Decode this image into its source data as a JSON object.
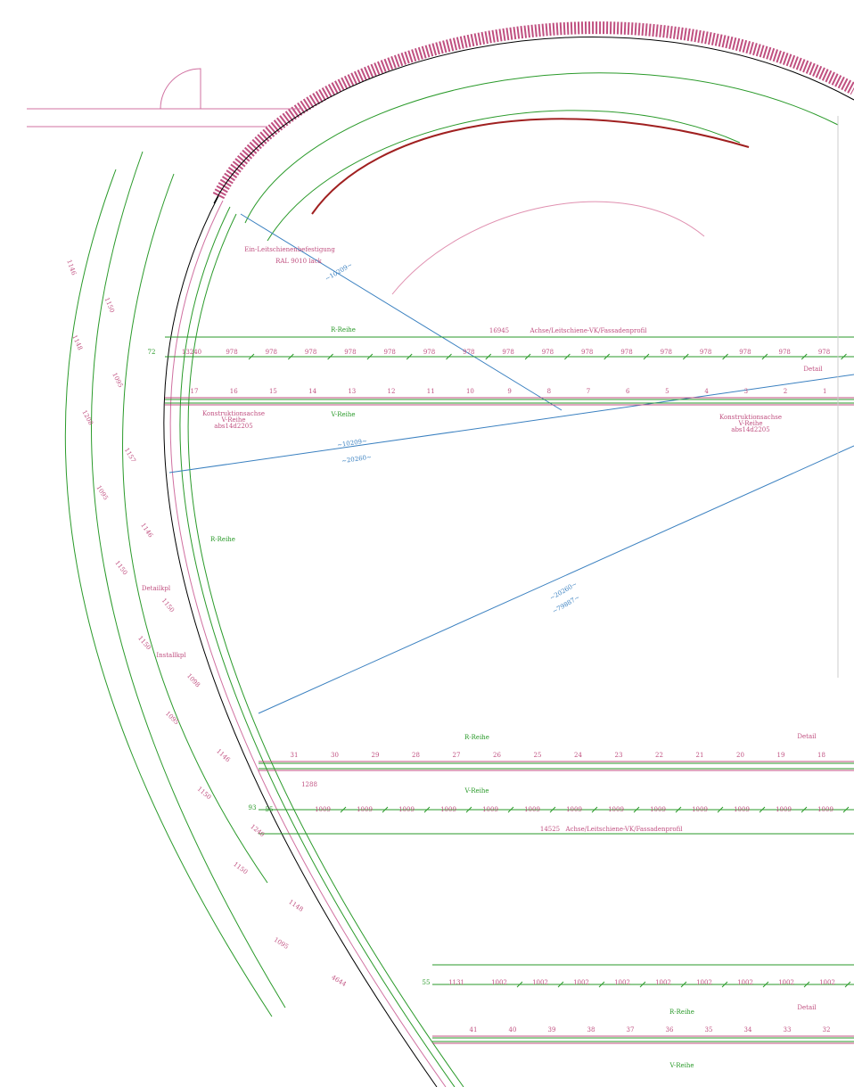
{
  "row_a": {
    "total": "16945",
    "axis": "Achse/Leitschiene-VK/Fassadenprofil",
    "left_dims": [
      "72",
      "13240"
    ],
    "dims": [
      "978",
      "978",
      "978",
      "978",
      "978",
      "978",
      "978",
      "978",
      "978",
      "978",
      "978",
      "978",
      "978",
      "978",
      "978",
      "978"
    ],
    "seats": [
      "17",
      "16",
      "15",
      "14",
      "13",
      "12",
      "11",
      "10",
      "9",
      "8",
      "7",
      "6",
      "5",
      "4",
      "3",
      "2",
      "1"
    ]
  },
  "row_b": {
    "total": "14525",
    "axis": "Achse/Leitschiene-VK/Fassadenprofil",
    "left_dims": [
      "93",
      "55",
      "1288"
    ],
    "dims": [
      "1009",
      "1009",
      "1009",
      "1009",
      "1009",
      "1009",
      "1009",
      "1009",
      "1009",
      "1009",
      "1009",
      "1009",
      "1009"
    ],
    "seats": [
      "31",
      "30",
      "29",
      "28",
      "27",
      "26",
      "25",
      "24",
      "23",
      "22",
      "21",
      "20",
      "19",
      "18"
    ]
  },
  "row_c": {
    "left_dims": [
      "55",
      "1131"
    ],
    "dims": [
      "1002",
      "1002",
      "1002",
      "1002",
      "1002",
      "1002",
      "1002",
      "1002",
      "1002"
    ],
    "seats": [
      "41",
      "40",
      "39",
      "38",
      "37",
      "36",
      "35",
      "34",
      "33",
      "32"
    ]
  },
  "annotations": [
    "R-Reihe",
    "V-Reihe",
    "R-Reihe",
    "R-Reihe",
    "V-Reihe",
    "R-Reihe",
    "V-Reihe",
    "~10209~",
    "~10209~",
    "~20260~",
    "~20260~",
    "~79887~",
    "Ein-Leitschienenbefestigung",
    "RAL 9010 lack",
    "Detailkpl",
    "Installkpl",
    "Konstruktionsachse",
    "V-Reihe",
    "abs14d2205",
    "Konstruktionsachse",
    "V-Reihe",
    "abs14d2205",
    "Detail",
    "Detail",
    "Detail"
  ],
  "left_dims": [
    "1146",
    "1150",
    "1148",
    "1095",
    "1208",
    "1157",
    "1095",
    "1146",
    "1150",
    "1150",
    "1150",
    "1098",
    "1095",
    "1146",
    "1150",
    "1240",
    "1150",
    "1148",
    "1095",
    "4644"
  ]
}
